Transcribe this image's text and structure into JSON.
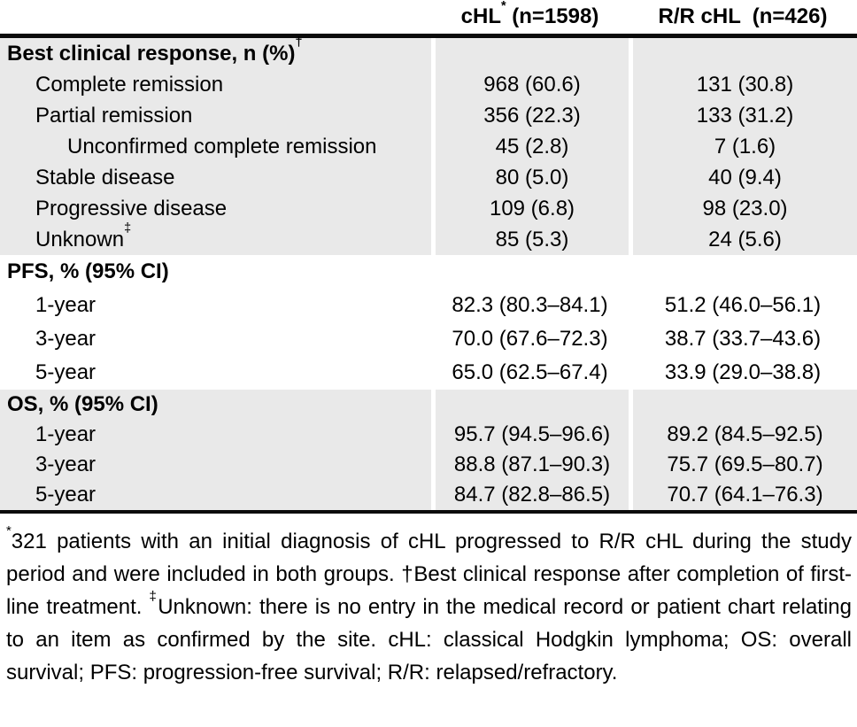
{
  "table": {
    "header": {
      "chl": {
        "text": "cHL",
        "sup": "*",
        "rest": " (n=1598)"
      },
      "rr": {
        "text": "R/R cHL  (n=426)"
      }
    },
    "sections": [
      {
        "title": "Best clinical response, n (%)",
        "title_sup": "†",
        "shaded": true,
        "rows": [
          {
            "label": "Complete remission",
            "chl": "968 (60.6)",
            "rr": "131 (30.8)"
          },
          {
            "label": "Partial remission",
            "chl": "356 (22.3)",
            "rr": "133 (31.2)"
          },
          {
            "label": "Unconfirmed complete remission",
            "chl": "45 (2.8)",
            "rr": "7 (1.6)"
          },
          {
            "label": "Stable disease",
            "chl": "80 (5.0)",
            "rr": "40 (9.4)"
          },
          {
            "label": "Progressive disease",
            "chl": "109 (6.8)",
            "rr": "98 (23.0)"
          },
          {
            "label": "Unknown",
            "label_sup": "‡",
            "chl": "85 (5.3)",
            "rr": "24 (5.6)"
          }
        ]
      },
      {
        "title": "PFS, % (95% CI)",
        "shaded": false,
        "rows": [
          {
            "label": "1-year",
            "chl": "82.3 (80.3–84.1)",
            "rr": "51.2 (46.0–56.1)"
          },
          {
            "label": "3-year",
            "chl": "70.0 (67.6–72.3)",
            "rr": "38.7 (33.7–43.6)"
          },
          {
            "label": "5-year",
            "chl": "65.0 (62.5–67.4)",
            "rr": "33.9 (29.0–38.8)"
          }
        ]
      },
      {
        "title": "OS, % (95% CI)",
        "shaded": true,
        "rows": [
          {
            "label": "1-year",
            "chl": "95.7 (94.5–96.6)",
            "rr": "89.2 (84.5–92.5)"
          },
          {
            "label": "3-year",
            "chl": "88.8 (87.1–90.3)",
            "rr": "75.7 (69.5–80.7)"
          },
          {
            "label": "5-year",
            "chl": "84.7 (82.8–86.5)",
            "rr": "70.7 (64.1–76.3)"
          }
        ]
      }
    ]
  },
  "footnote": {
    "sup1": "*",
    "seg1": "321 patients with an initial diagnosis of cHL progressed to R/R cHL during the study period and were included in both groups. †Best clinical response after completion of first-line treatment. ",
    "sup2": "‡",
    "seg2": "Unknown: there is no entry in the medical record or patient chart relating to an item as confirmed by the site. cHL: classical Hodgkin lymphoma; OS: overall survival; PFS: progression-free survival; R/R: relapsed/refractory."
  },
  "colors": {
    "shaded_row_bg": "#e9e9e9",
    "border": "#0a0a0a",
    "text": "#000000"
  },
  "chart_data": {
    "type": "table",
    "columns": [
      "",
      "cHL* (n=1598)",
      "R/R cHL (n=426)"
    ],
    "rows": [
      [
        "Best clinical response, n (%)†",
        "",
        ""
      ],
      [
        "Complete remission",
        "968 (60.6)",
        "131 (30.8)"
      ],
      [
        "Partial remission",
        "356 (22.3)",
        "133 (31.2)"
      ],
      [
        "Unconfirmed complete remission",
        "45 (2.8)",
        "7 (1.6)"
      ],
      [
        "Stable disease",
        "80 (5.0)",
        "40 (9.4)"
      ],
      [
        "Progressive disease",
        "109 (6.8)",
        "98 (23.0)"
      ],
      [
        "Unknown‡",
        "85 (5.3)",
        "24 (5.6)"
      ],
      [
        "PFS, % (95% CI)",
        "",
        ""
      ],
      [
        "1-year",
        "82.3 (80.3–84.1)",
        "51.2 (46.0–56.1)"
      ],
      [
        "3-year",
        "70.0 (67.6–72.3)",
        "38.7 (33.7–43.6)"
      ],
      [
        "5-year",
        "65.0 (62.5–67.4)",
        "33.9 (29.0–38.8)"
      ],
      [
        "OS, % (95% CI)",
        "",
        ""
      ],
      [
        "1-year",
        "95.7 (94.5–96.6)",
        "89.2 (84.5–92.5)"
      ],
      [
        "3-year",
        "88.8 (87.1–90.3)",
        "75.7 (69.5–80.7)"
      ],
      [
        "5-year",
        "84.7 (82.8–86.5)",
        "70.7 (64.1–76.3)"
      ]
    ]
  }
}
